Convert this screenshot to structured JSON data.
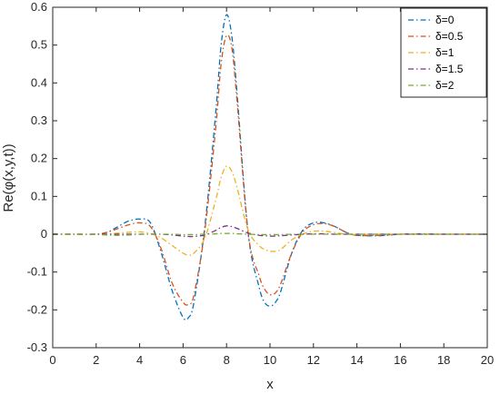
{
  "chart_data": {
    "type": "line",
    "xlabel": "x",
    "ylabel": "Re(φ(x,y,t))",
    "xlim": [
      0,
      20
    ],
    "ylim": [
      -0.3,
      0.6
    ],
    "xticks": [
      "0",
      "2",
      "4",
      "6",
      "8",
      "10",
      "12",
      "14",
      "16",
      "18",
      "20"
    ],
    "yticks": [
      "-0.3",
      "-0.2",
      "-0.1",
      "0",
      "0.1",
      "0.2",
      "0.3",
      "0.4",
      "0.5",
      "0.6"
    ],
    "grid": false,
    "legend_position": "top-right",
    "x": [
      0,
      1,
      2,
      2.5,
      3,
      3.5,
      4,
      4.5,
      5,
      5.5,
      6,
      6.25,
      6.5,
      7,
      7.5,
      7.75,
      8,
      8.25,
      8.5,
      9,
      9.5,
      9.75,
      10,
      10.25,
      10.5,
      11,
      11.5,
      12,
      12.5,
      13,
      13.5,
      14,
      15,
      16,
      17,
      18,
      19,
      20
    ],
    "series": [
      {
        "name": "δ=0",
        "color": "#0072BD",
        "values": [
          0.0,
          0.0,
          0.0,
          0.005,
          0.02,
          0.035,
          0.04,
          0.03,
          -0.05,
          -0.15,
          -0.22,
          -0.22,
          -0.18,
          0.02,
          0.32,
          0.5,
          0.58,
          0.52,
          0.36,
          0.0,
          -0.14,
          -0.18,
          -0.19,
          -0.18,
          -0.15,
          -0.05,
          0.01,
          0.03,
          0.03,
          0.02,
          0.005,
          -0.003,
          -0.004,
          0.0,
          0.001,
          0.0,
          0.0,
          0.0
        ]
      },
      {
        "name": "δ=0.5",
        "color": "#D95319",
        "values": [
          0.0,
          0.0,
          0.0,
          0.005,
          0.015,
          0.025,
          0.03,
          0.02,
          -0.04,
          -0.13,
          -0.18,
          -0.185,
          -0.16,
          0.01,
          0.28,
          0.45,
          0.525,
          0.49,
          0.34,
          0.0,
          -0.11,
          -0.145,
          -0.16,
          -0.155,
          -0.13,
          -0.05,
          0.005,
          0.025,
          0.028,
          0.02,
          0.005,
          -0.003,
          -0.003,
          0.0,
          0.0,
          0.0,
          0.0,
          0.0
        ]
      },
      {
        "name": "δ=1",
        "color": "#EDB120",
        "values": [
          0.0,
          0.0,
          0.0,
          0.0,
          0.003,
          0.005,
          0.006,
          0.002,
          -0.01,
          -0.03,
          -0.05,
          -0.055,
          -0.05,
          -0.01,
          0.09,
          0.15,
          0.18,
          0.165,
          0.12,
          0.01,
          -0.03,
          -0.04,
          -0.045,
          -0.045,
          -0.04,
          -0.015,
          0.0,
          0.008,
          0.008,
          0.004,
          0.0,
          -0.001,
          0.0,
          0.0,
          0.0,
          0.0,
          0.0,
          0.0
        ]
      },
      {
        "name": "δ=1.5",
        "color": "#7E2F8E",
        "values": [
          0.0,
          0.0,
          0.0,
          0.0,
          0.0,
          0.0,
          0.0,
          0.0,
          0.0,
          -0.002,
          -0.005,
          -0.006,
          -0.006,
          -0.002,
          0.01,
          0.018,
          0.022,
          0.02,
          0.015,
          0.003,
          -0.003,
          -0.004,
          -0.005,
          -0.005,
          -0.004,
          -0.002,
          0.0,
          0.001,
          0.001,
          0.0,
          0.0,
          0.0,
          0.0,
          0.0,
          0.0,
          0.0,
          0.0,
          0.0
        ]
      },
      {
        "name": "δ=2",
        "color": "#77AC30",
        "values": [
          0.0,
          0.0,
          -0.001,
          -0.002,
          -0.003,
          -0.002,
          0.0,
          0.0,
          0.0,
          0.0,
          -0.001,
          -0.001,
          -0.001,
          0.0,
          0.001,
          0.002,
          0.002,
          0.002,
          0.001,
          0.0,
          -0.001,
          -0.001,
          -0.001,
          -0.001,
          -0.001,
          0.0,
          0.0,
          0.0,
          0.0,
          0.0,
          0.0,
          0.0,
          0.0,
          0.0,
          0.0,
          0.0,
          0.0,
          0.0
        ]
      }
    ]
  }
}
